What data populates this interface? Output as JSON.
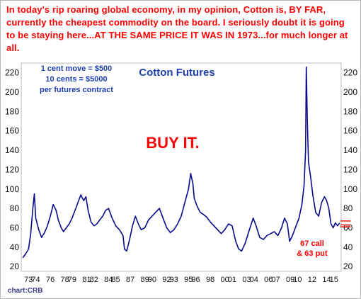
{
  "headline": "In today's rip roaring global economy, in my opinion, Cotton is, BY FAR, currently the cheapest commodity on the board. I seriously doubt it is going to be staying here...AT THE SAME PRICE IT WAS IN 1973...for much longer at all.",
  "credit": "chart:CRB",
  "colors": {
    "headline": "#ff0000",
    "title": "#1f3fb0",
    "line": "#0a0a8c",
    "note": "#1f3fb0",
    "buy": "#ff0000",
    "options": "#ff0000",
    "axis": "#111111",
    "background": "#ffffff"
  },
  "chart_data": {
    "type": "line",
    "title": "Cotton Futures",
    "note_lines": [
      "1 cent move = $500",
      "10 cents = $5000",
      "per futures contract"
    ],
    "callout": "BUY IT.",
    "option_lines": [
      "67 call",
      "& 63 put"
    ],
    "option_strikes": [
      67,
      63,
      61
    ],
    "y_ticks": [
      20,
      40,
      60,
      80,
      100,
      120,
      140,
      160,
      180,
      200,
      220
    ],
    "ylim": [
      15,
      230
    ],
    "xlim": [
      1972,
      2016
    ],
    "grid": false,
    "x_tick_labels": [
      {
        "label": "73",
        "x": 1973
      },
      {
        "label": "74",
        "x": 1974
      },
      {
        "label": "76",
        "x": 1976
      },
      {
        "label": "78",
        "x": 1978
      },
      {
        "label": "79",
        "x": 1979
      },
      {
        "label": "81",
        "x": 1981
      },
      {
        "label": "82",
        "x": 1982
      },
      {
        "label": "84",
        "x": 1984
      },
      {
        "label": "85",
        "x": 1985
      },
      {
        "label": "87",
        "x": 1987
      },
      {
        "label": "89",
        "x": 1989
      },
      {
        "label": "90",
        "x": 1990
      },
      {
        "label": "92",
        "x": 1992
      },
      {
        "label": "93",
        "x": 1993
      },
      {
        "label": "95",
        "x": 1995
      },
      {
        "label": "96",
        "x": 1996
      },
      {
        "label": "98",
        "x": 1998
      },
      {
        "label": "00",
        "x": 2000
      },
      {
        "label": "01",
        "x": 2001
      },
      {
        "label": "03",
        "x": 2003
      },
      {
        "label": "04",
        "x": 2004
      },
      {
        "label": "06",
        "x": 2006
      },
      {
        "label": "07",
        "x": 2007
      },
      {
        "label": "09",
        "x": 2009
      },
      {
        "label": "10",
        "x": 2010
      },
      {
        "label": "12",
        "x": 2012
      },
      {
        "label": "14",
        "x": 2014
      },
      {
        "label": "15",
        "x": 2015
      }
    ],
    "series": [
      {
        "x": [
          1972.2,
          1972.6,
          1973.0,
          1973.3,
          1973.6,
          1973.8,
          1974.0,
          1974.4,
          1974.8,
          1975.2,
          1975.6,
          1976.0,
          1976.4,
          1976.8,
          1977.1,
          1977.5,
          1977.8,
          1978.2,
          1978.6,
          1979.0,
          1979.4,
          1979.8,
          1980.2,
          1980.6,
          1980.9,
          1981.2,
          1981.6,
          1982.0,
          1982.4,
          1982.8,
          1983.2,
          1983.6,
          1984.0,
          1984.5,
          1985.0,
          1985.5,
          1986.0,
          1986.2,
          1986.5,
          1986.9,
          1987.3,
          1987.7,
          1988.1,
          1988.5,
          1989.0,
          1989.5,
          1990.0,
          1990.5,
          1991.0,
          1991.5,
          1992.0,
          1992.5,
          1993.0,
          1993.5,
          1994.0,
          1994.5,
          1995.0,
          1995.3,
          1995.6,
          1995.8,
          1996.2,
          1996.6,
          1997.0,
          1997.5,
          1998.0,
          1998.5,
          1999.0,
          1999.5,
          2000.0,
          2000.5,
          2001.0,
          2001.5,
          2001.9,
          2002.3,
          2002.8,
          2003.3,
          2003.9,
          2004.3,
          2004.8,
          2005.3,
          2005.8,
          2006.3,
          2006.8,
          2007.3,
          2007.8,
          2008.2,
          2008.6,
          2008.9,
          2009.3,
          2009.8,
          2010.2,
          2010.6,
          2010.9,
          2011.1,
          2011.2,
          2011.35,
          2011.5,
          2011.8,
          2012.1,
          2012.5,
          2012.9,
          2013.3,
          2013.7,
          2014.0,
          2014.3,
          2014.6,
          2014.9,
          2015.2,
          2015.5,
          2015.8
        ],
        "y": [
          29,
          33,
          38,
          54,
          80,
          95,
          70,
          58,
          50,
          55,
          62,
          72,
          84,
          78,
          68,
          60,
          56,
          60,
          64,
          70,
          78,
          86,
          94,
          88,
          92,
          78,
          66,
          62,
          64,
          68,
          72,
          78,
          80,
          70,
          62,
          58,
          52,
          38,
          36,
          48,
          62,
          72,
          64,
          58,
          60,
          68,
          72,
          76,
          80,
          70,
          60,
          55,
          58,
          64,
          72,
          86,
          100,
          116,
          106,
          90,
          82,
          76,
          74,
          71,
          66,
          62,
          58,
          54,
          58,
          64,
          62,
          46,
          38,
          36,
          44,
          56,
          70,
          62,
          50,
          48,
          52,
          54,
          56,
          52,
          60,
          70,
          64,
          46,
          52,
          62,
          70,
          84,
          104,
          140,
          226,
          170,
          128,
          112,
          94,
          76,
          72,
          86,
          92,
          88,
          80,
          64,
          60,
          65,
          62,
          65
        ]
      }
    ]
  }
}
